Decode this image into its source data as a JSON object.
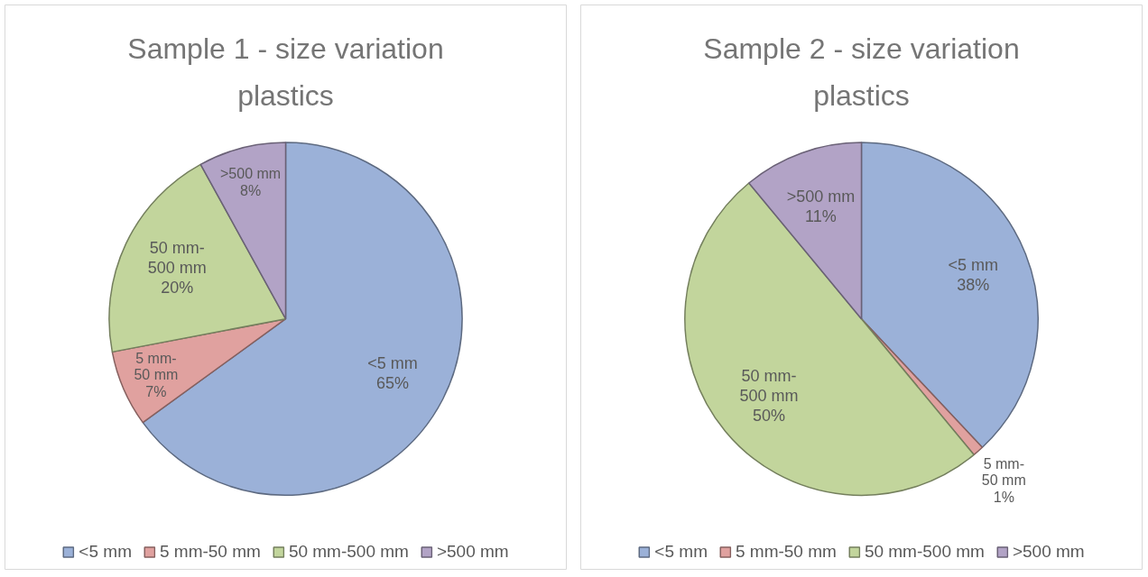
{
  "chart_data": [
    {
      "type": "pie",
      "title": "Sample 1 - size variation plastics",
      "categories": [
        "<5 mm",
        "5 mm-50 mm",
        "50 mm-500 mm",
        ">500 mm"
      ],
      "values": [
        65,
        7,
        20,
        8
      ],
      "value_labels": [
        "65%",
        "7%",
        "20%",
        "8%"
      ],
      "colors": [
        "#9bb1d8",
        "#e0a19f",
        "#c2d59c",
        "#b2a3c6"
      ],
      "legend": "bottom"
    },
    {
      "type": "pie",
      "title": "Sample 2 - size variation plastics",
      "categories": [
        "<5 mm",
        "5 mm-50 mm",
        "50 mm-500 mm",
        ">500 mm"
      ],
      "values": [
        38,
        1,
        50,
        11
      ],
      "value_labels": [
        "38%",
        "1%",
        "50%",
        "11%"
      ],
      "colors": [
        "#9bb1d8",
        "#e0a19f",
        "#c2d59c",
        "#b2a3c6"
      ],
      "legend": "bottom"
    }
  ]
}
